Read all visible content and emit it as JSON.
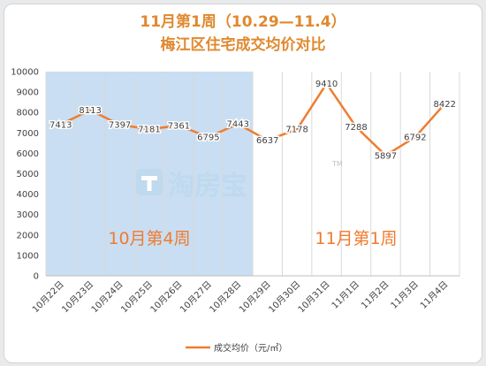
{
  "chart_data": {
    "type": "line",
    "title": "11月第1周（10.29—11.4）",
    "subtitle": "梅江区住宅成交均价对比",
    "categories": [
      "10月22日",
      "10月23日",
      "10月24日",
      "10月25日",
      "10月26日",
      "10月27日",
      "10月28日",
      "10月29日",
      "10月30日",
      "10月31日",
      "11月1日",
      "11月2日",
      "11月3日",
      "11月4日"
    ],
    "series": [
      {
        "name": "成交均价（元/㎡）",
        "values": [
          7413,
          8113,
          7397,
          7181,
          7361,
          6795,
          7443,
          6637,
          7178,
          9410,
          7288,
          5897,
          6792,
          8422
        ]
      }
    ],
    "ylim": [
      0,
      10000
    ],
    "yticks": [
      0,
      1000,
      2000,
      3000,
      4000,
      5000,
      6000,
      7000,
      8000,
      9000,
      10000
    ],
    "legend_position": "bottom",
    "grid": "vertical",
    "annotations": [
      {
        "text": "10月第4周",
        "covers": [
          "10月22日",
          "10月28日"
        ]
      },
      {
        "text": "11月第1周",
        "covers": [
          "10月29日",
          "11月4日"
        ]
      }
    ],
    "watermark": "淘房宝"
  },
  "colors": {
    "line": "#ed7d31",
    "title": "#e0892f",
    "week_label": "#ef7b2f",
    "shade": "#c9def2",
    "watermark": "#bfd9ee"
  }
}
